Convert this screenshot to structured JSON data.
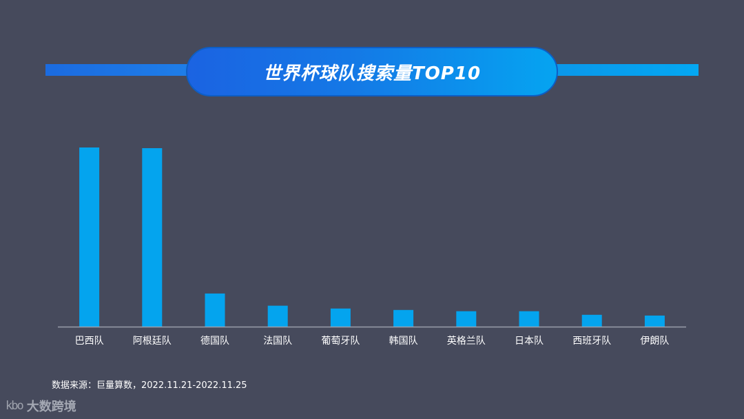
{
  "title": "世界杯球队搜索量TOP10",
  "source_text": "数据来源：巨量算数，2022.11.21-2022.11.25",
  "brand": {
    "mark": "kbo",
    "name": "大数跨境"
  },
  "colors": {
    "background": "#464a5c",
    "bar": "#04a4ee",
    "axis": "#9a9eaa",
    "label": "#ffffff"
  },
  "chart_data": {
    "type": "bar",
    "title": "世界杯球队搜索量TOP10",
    "xlabel": "",
    "ylabel": "",
    "categories": [
      "巴西队",
      "阿根廷队",
      "德国队",
      "法国队",
      "葡萄牙队",
      "韩国队",
      "英格兰队",
      "日本队",
      "西班牙队",
      "伊朗队"
    ],
    "values": [
      100,
      99.6,
      18.5,
      11.7,
      10.1,
      9.3,
      8.6,
      8.6,
      6.6,
      6.2
    ],
    "ylim": [
      0,
      100
    ],
    "y_axis_visible": false,
    "grid": false,
    "legend": "none"
  }
}
